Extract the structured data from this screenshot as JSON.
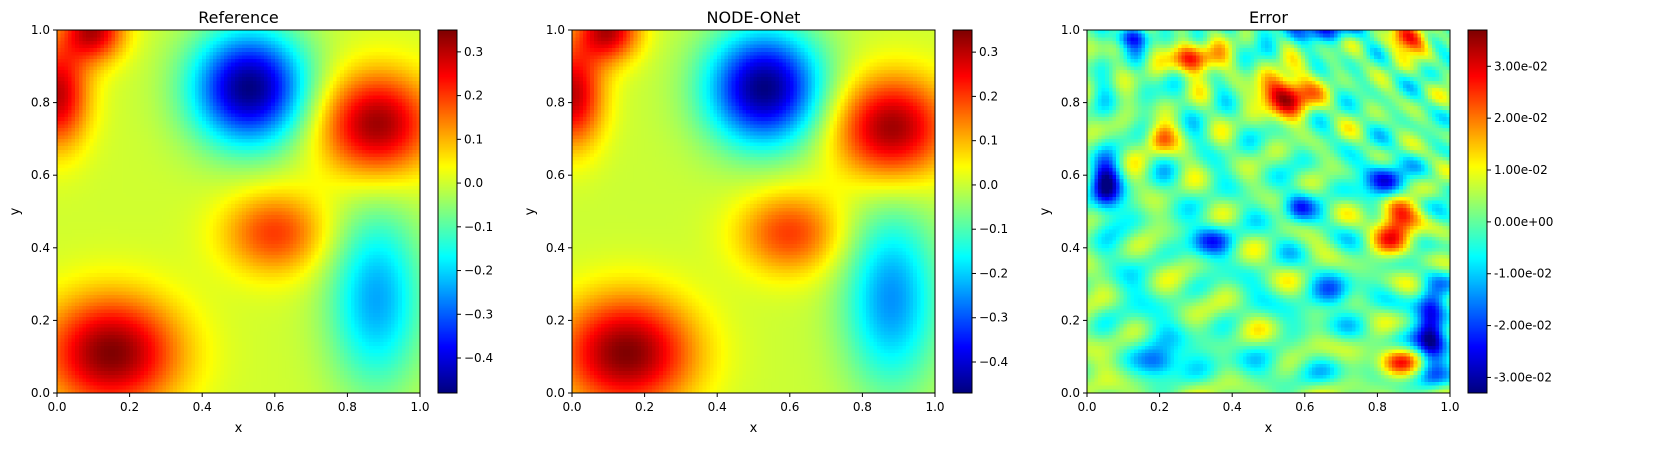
{
  "chart_data": [
    {
      "type": "heatmap",
      "title": "Reference",
      "xlabel": "x",
      "ylabel": "y",
      "xlim": [
        0,
        1
      ],
      "ylim": [
        0,
        1
      ],
      "x_ticks": [
        "0.0",
        "0.2",
        "0.4",
        "0.6",
        "0.8",
        "1.0"
      ],
      "y_ticks": [
        "0.0",
        "0.2",
        "0.4",
        "0.6",
        "0.8",
        "1.0"
      ],
      "colormap": "jet",
      "colorbar": {
        "range": [
          -0.48,
          0.35
        ],
        "ticks": [
          -0.4,
          -0.3,
          -0.2,
          -0.1,
          0.0,
          0.1,
          0.2,
          0.3
        ],
        "tick_labels": [
          "−0.4",
          "−0.3",
          "−0.2",
          "−0.1",
          "0.0",
          "0.1",
          "0.2",
          "0.3"
        ]
      },
      "features": [
        {
          "x": 0.53,
          "y": 0.84,
          "value": -0.48,
          "sx": 0.11,
          "sy": 0.11
        },
        {
          "x": 0.88,
          "y": 0.26,
          "value": -0.24,
          "sx": 0.09,
          "sy": 0.17
        },
        {
          "x": 0.15,
          "y": 0.11,
          "value": 0.35,
          "sx": 0.13,
          "sy": 0.11
        },
        {
          "x": 0.88,
          "y": 0.74,
          "value": 0.33,
          "sx": 0.11,
          "sy": 0.1
        },
        {
          "x": 0.0,
          "y": 0.82,
          "value": 0.3,
          "sx": 0.06,
          "sy": 0.1
        },
        {
          "x": 0.1,
          "y": 1.0,
          "value": 0.3,
          "sx": 0.06,
          "sy": 0.06
        },
        {
          "x": 0.6,
          "y": 0.44,
          "value": 0.2,
          "sx": 0.1,
          "sy": 0.08
        }
      ]
    },
    {
      "type": "heatmap",
      "title": "NODE-ONet",
      "xlabel": "x",
      "ylabel": "y",
      "xlim": [
        0,
        1
      ],
      "ylim": [
        0,
        1
      ],
      "x_ticks": [
        "0.0",
        "0.2",
        "0.4",
        "0.6",
        "0.8",
        "1.0"
      ],
      "y_ticks": [
        "0.0",
        "0.2",
        "0.4",
        "0.6",
        "0.8",
        "1.0"
      ],
      "colormap": "jet",
      "colorbar": {
        "range": [
          -0.47,
          0.35
        ],
        "ticks": [
          -0.4,
          -0.3,
          -0.2,
          -0.1,
          0.0,
          0.1,
          0.2,
          0.3
        ],
        "tick_labels": [
          "−0.4",
          "−0.3",
          "−0.2",
          "−0.1",
          "0.0",
          "0.1",
          "0.2",
          "0.3"
        ]
      },
      "features": [
        {
          "x": 0.53,
          "y": 0.84,
          "value": -0.47,
          "sx": 0.11,
          "sy": 0.11
        },
        {
          "x": 0.88,
          "y": 0.26,
          "value": -0.25,
          "sx": 0.09,
          "sy": 0.17
        },
        {
          "x": 0.15,
          "y": 0.11,
          "value": 0.35,
          "sx": 0.13,
          "sy": 0.11
        },
        {
          "x": 0.88,
          "y": 0.73,
          "value": 0.33,
          "sx": 0.11,
          "sy": 0.1
        },
        {
          "x": 0.0,
          "y": 0.82,
          "value": 0.3,
          "sx": 0.06,
          "sy": 0.1
        },
        {
          "x": 0.1,
          "y": 1.0,
          "value": 0.3,
          "sx": 0.06,
          "sy": 0.06
        },
        {
          "x": 0.6,
          "y": 0.44,
          "value": 0.2,
          "sx": 0.1,
          "sy": 0.08
        }
      ]
    },
    {
      "type": "heatmap",
      "title": "Error",
      "xlabel": "x",
      "ylabel": "y",
      "xlim": [
        0,
        1
      ],
      "ylim": [
        0,
        1
      ],
      "x_ticks": [
        "0.0",
        "0.2",
        "0.4",
        "0.6",
        "0.8",
        "1.0"
      ],
      "y_ticks": [
        "0.0",
        "0.2",
        "0.4",
        "0.6",
        "0.8",
        "1.0"
      ],
      "colormap": "jet",
      "colorbar": {
        "range": [
          -0.033,
          0.037
        ],
        "ticks": [
          -0.03,
          -0.02,
          -0.01,
          0.0,
          0.01,
          0.02,
          0.03
        ],
        "tick_labels": [
          "-3.00e-02",
          "-2.00e-02",
          "-1.00e-02",
          "0.00e+00",
          "1.00e-02",
          "2.00e-02",
          "3.00e-02"
        ]
      },
      "features": [
        {
          "x": 0.55,
          "y": 0.82,
          "value": 0.037,
          "sx": 0.05,
          "sy": 0.04
        },
        {
          "x": 0.3,
          "y": 0.92,
          "value": 0.027,
          "sx": 0.05,
          "sy": 0.03
        },
        {
          "x": 0.85,
          "y": 0.47,
          "value": 0.03,
          "sx": 0.04,
          "sy": 0.06
        },
        {
          "x": 0.85,
          "y": 0.08,
          "value": 0.022,
          "sx": 0.04,
          "sy": 0.03
        },
        {
          "x": 0.2,
          "y": 0.7,
          "value": 0.02,
          "sx": 0.03,
          "sy": 0.03
        },
        {
          "x": 0.88,
          "y": 0.98,
          "value": 0.028,
          "sx": 0.04,
          "sy": 0.03
        },
        {
          "x": 0.05,
          "y": 0.57,
          "value": -0.03,
          "sx": 0.03,
          "sy": 0.05
        },
        {
          "x": 0.95,
          "y": 0.17,
          "value": -0.032,
          "sx": 0.03,
          "sy": 0.08
        },
        {
          "x": 0.82,
          "y": 0.58,
          "value": -0.028,
          "sx": 0.04,
          "sy": 0.04
        },
        {
          "x": 0.2,
          "y": 0.08,
          "value": -0.022,
          "sx": 0.04,
          "sy": 0.03
        },
        {
          "x": 0.34,
          "y": 0.42,
          "value": -0.02,
          "sx": 0.04,
          "sy": 0.03
        },
        {
          "x": 0.58,
          "y": 0.51,
          "value": -0.02,
          "sx": 0.03,
          "sy": 0.03
        },
        {
          "x": 0.12,
          "y": 0.98,
          "value": -0.02,
          "sx": 0.04,
          "sy": 0.02
        },
        {
          "x": 0.65,
          "y": 1.0,
          "value": -0.018,
          "sx": 0.1,
          "sy": 0.02
        },
        {
          "x": 0.68,
          "y": 0.27,
          "value": -0.018,
          "sx": 0.04,
          "sy": 0.03
        }
      ]
    }
  ]
}
